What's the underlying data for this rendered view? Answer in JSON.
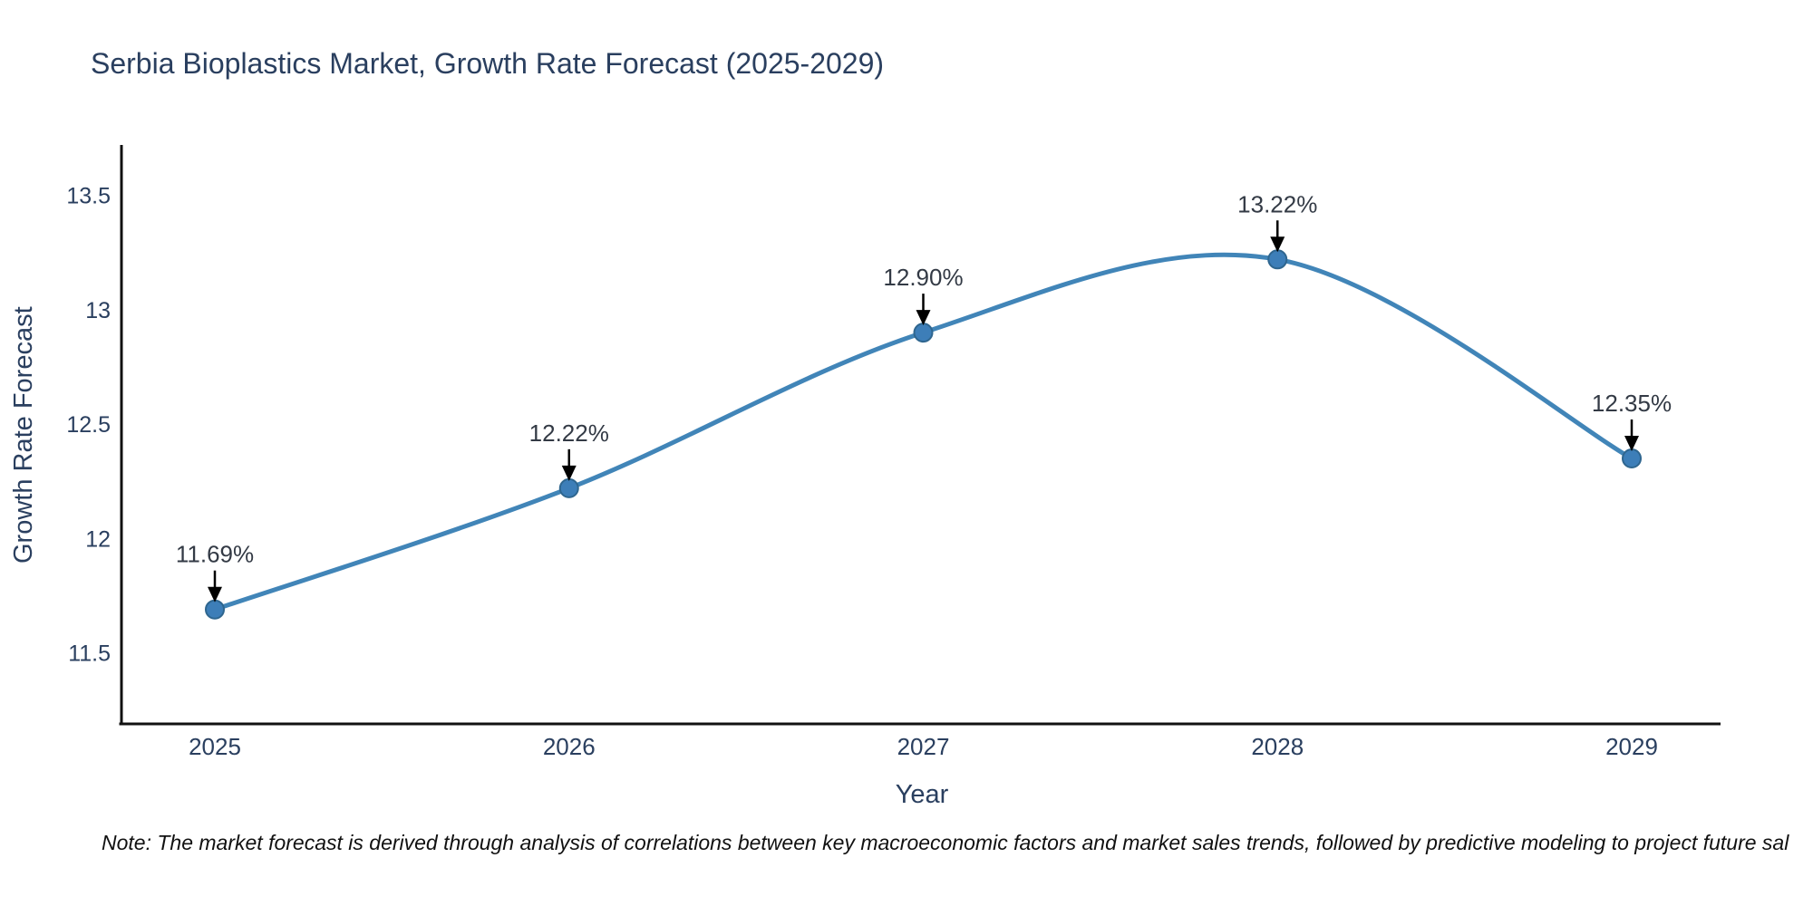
{
  "chart_data": {
    "type": "line",
    "title": "Serbia Bioplastics Market, Growth Rate Forecast (2025-2029)",
    "xlabel": "Year",
    "ylabel": "Growth Rate Forecast",
    "categories": [
      "2025",
      "2026",
      "2027",
      "2028",
      "2029"
    ],
    "values": [
      11.69,
      12.22,
      12.9,
      13.22,
      12.35
    ],
    "point_labels": [
      "11.69%",
      "12.22%",
      "12.90%",
      "13.22%",
      "12.35%"
    ],
    "ytick_values": [
      11.5,
      12,
      12.5,
      13,
      13.5
    ],
    "ytick_labels": [
      "11.5",
      "12",
      "12.5",
      "13",
      "13.5"
    ],
    "ylim": [
      11.19,
      13.72
    ],
    "line_shape": "spline",
    "grid": false,
    "legend": "none",
    "colors": {
      "line": "#4185b8",
      "marker_fill": "#3d7eb8",
      "marker_edge": "#2f668f",
      "axis": "#111111",
      "tick_text": "#2a3f5f",
      "annotation_text": "#333a45",
      "arrow": "#000000"
    }
  },
  "note": {
    "text": "Note: The market forecast is derived through analysis of correlations between key macroeconomic factors and market sales trends, followed by predictive modeling to project future sal"
  }
}
